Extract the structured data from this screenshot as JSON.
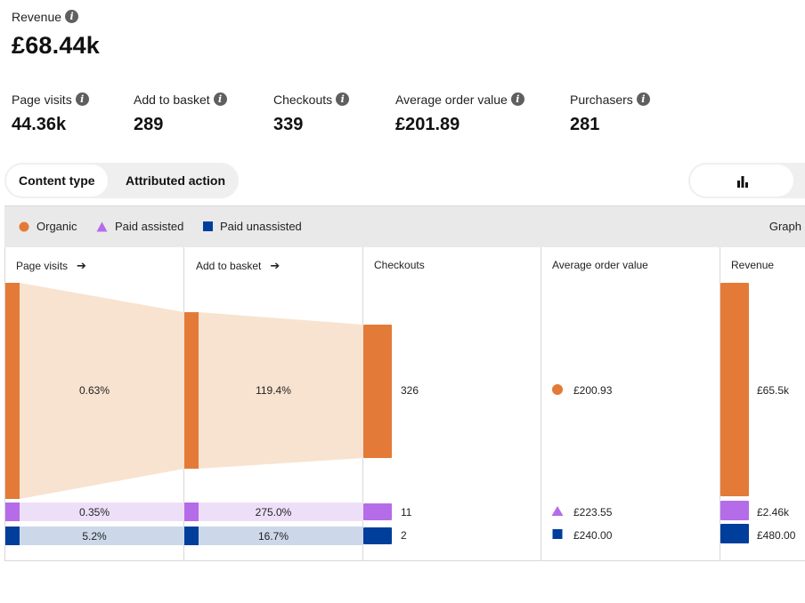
{
  "header": {
    "revenue_label": "Revenue",
    "revenue_value": "£68.44k"
  },
  "kpis": [
    {
      "label": "Page visits",
      "value": "44.36k"
    },
    {
      "label": "Add to basket",
      "value": "289"
    },
    {
      "label": "Checkouts",
      "value": "339"
    },
    {
      "label": "Average order value",
      "value": "£201.89"
    },
    {
      "label": "Purchasers",
      "value": "281"
    }
  ],
  "tabs": [
    {
      "label": "Content type",
      "active": true
    },
    {
      "label": "Attributed action",
      "active": false
    }
  ],
  "view_toggle": {
    "icon": "bar-chart-icon"
  },
  "legend": {
    "items": [
      {
        "label": "Organic",
        "shape": "circle",
        "color": "#e47a38"
      },
      {
        "label": "Paid assisted",
        "shape": "triangle",
        "color": "#b56ce8"
      },
      {
        "label": "Paid unassisted",
        "shape": "square",
        "color": "#003e9b"
      }
    ],
    "graph_label": "Graph"
  },
  "columns": [
    {
      "label": "Page visits",
      "arrow": "➔"
    },
    {
      "label": "Add to basket",
      "arrow": "➔"
    },
    {
      "label": "Checkouts",
      "arrow": ""
    },
    {
      "label": "Average order value",
      "arrow": ""
    },
    {
      "label": "Revenue",
      "arrow": ""
    }
  ],
  "flow": {
    "organic": {
      "rate_visits_to_basket": "0.63%",
      "rate_basket_to_checkout": "119.4%",
      "checkouts": "326",
      "aov": "£200.93",
      "revenue": "£65.5k"
    },
    "paid_assisted": {
      "rate_visits_to_basket": "0.35%",
      "rate_basket_to_checkout": "275.0%",
      "checkouts": "11",
      "aov": "£223.55",
      "revenue": "£2.46k"
    },
    "paid_unassisted": {
      "rate_visits_to_basket": "5.2%",
      "rate_basket_to_checkout": "16.7%",
      "checkouts": "2",
      "aov": "£240.00",
      "revenue": "£480.00"
    }
  },
  "colors": {
    "organic": "#e47a38",
    "organic_light": "#f8e3d0",
    "paid_assisted": "#b56ce8",
    "paid_assisted_light": "#eedff9",
    "paid_unassisted": "#003e9b",
    "paid_unassisted_light": "#ccd8ea"
  }
}
